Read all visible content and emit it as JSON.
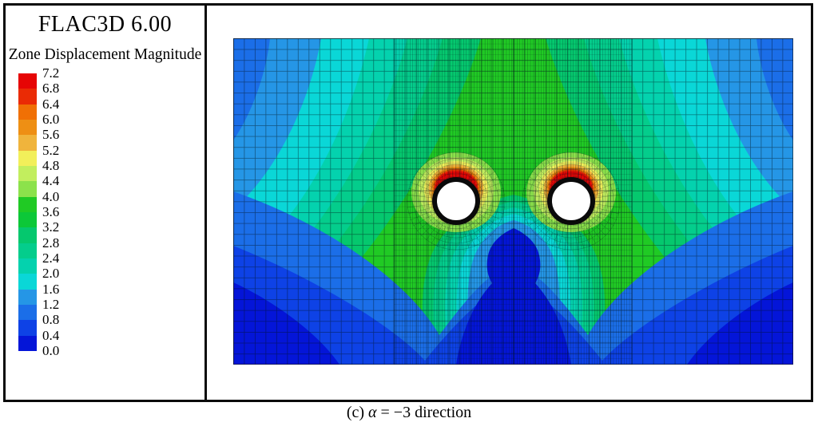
{
  "legend_panel": {
    "title": "FLAC3D 6.00",
    "subtitle": "Zone Displacement Magnitude",
    "colorbar": {
      "labels": [
        "7.2",
        "6.8",
        "6.4",
        "6.0",
        "5.6",
        "5.2",
        "4.8",
        "4.4",
        "4.0",
        "3.6",
        "3.2",
        "2.8",
        "2.4",
        "2.0",
        "1.6",
        "1.2",
        "0.8",
        "0.4",
        "0.0"
      ],
      "band_colors": [
        "#e60505",
        "#ea2b05",
        "#f07005",
        "#ee8f14",
        "#f0b43c",
        "#f2ef5a",
        "#c2ee5e",
        "#8ce24b",
        "#20ca24",
        "#0cc838",
        "#05c86e",
        "#04cd8c",
        "#04d2ae",
        "#0ad7d7",
        "#2596e6",
        "#1b6ee8",
        "#0e42e6",
        "#0415d8"
      ]
    }
  },
  "caption": {
    "prefix": "(c) ",
    "symbol": "α",
    "text": " = −3 direction"
  },
  "chart_data": {
    "type": "heatmap",
    "subtype": "filled-contour-with-mesh",
    "title": "Zone Displacement Magnitude",
    "software_banner": "FLAC3D 6.00",
    "value_min": 0.0,
    "value_max": 7.2,
    "contour_interval": 0.4,
    "legend_values": [
      7.2,
      6.8,
      6.4,
      6.0,
      5.6,
      5.2,
      4.8,
      4.4,
      4.0,
      3.6,
      3.2,
      2.8,
      2.4,
      2.0,
      1.6,
      1.2,
      0.8,
      0.4,
      0.0
    ],
    "legend_position": "left",
    "caption": "(c) α = −3 direction",
    "features": [
      "two circular tunnel openings (white with black liner ring) side by side at mid-height",
      "maximum displacement ~6.8-7.2 (red) concentrated at each tunnel crown, grading through orange and yellow upward",
      "broad green zone (~3.6-4.4) in the upper middle column above the tunnels",
      "cyan and blue bands (~0.8-2.4) sweeping toward left, right and top corners",
      "dark blue minimum zone (0.0-0.4) in a plume below/between the tunnels and in both bottom corners",
      "finite-element mesh: coarse quad grid outside, refined radial mesh band around the tunnels"
    ]
  }
}
